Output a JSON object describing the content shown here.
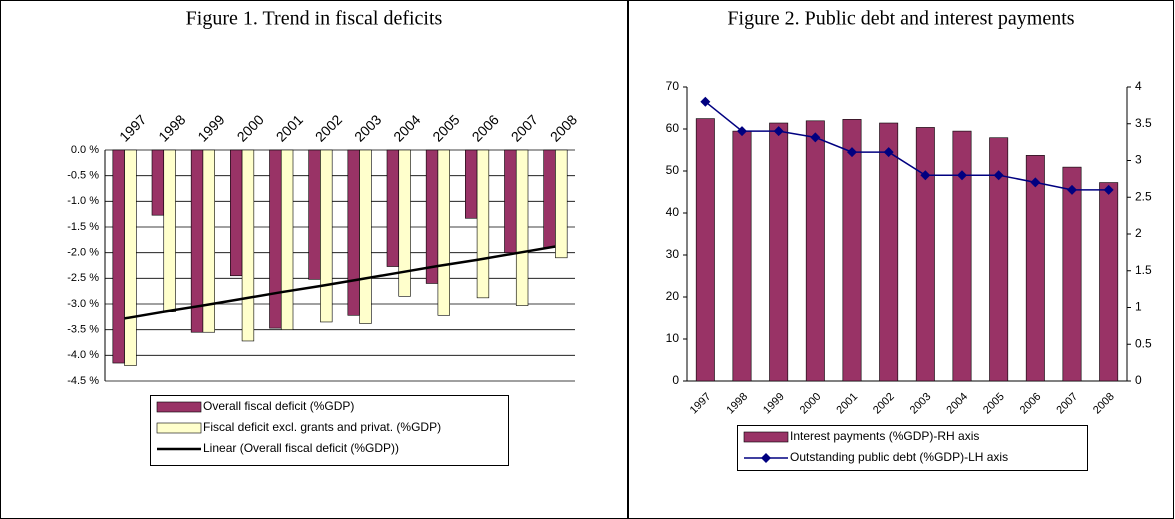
{
  "chart_data": [
    {
      "type": "bar",
      "title": "Figure 1. Trend in fiscal deficits",
      "categories": [
        "1997",
        "1998",
        "1999",
        "2000",
        "2001",
        "2002",
        "2003",
        "2004",
        "2005",
        "2006",
        "2007",
        "2008"
      ],
      "series": [
        {
          "name": "Overall fiscal deficit (%GDP)",
          "color": "#993366",
          "values": [
            -4.15,
            -1.27,
            -3.55,
            -2.45,
            -3.47,
            -2.52,
            -3.22,
            -2.27,
            -2.6,
            -1.33,
            -2.0,
            -1.9
          ]
        },
        {
          "name": "Fiscal deficit excl. grants and privat. (%GDP)",
          "color": "#FFFFCC",
          "values": [
            -4.2,
            -3.15,
            -3.55,
            -3.72,
            -3.5,
            -3.35,
            -3.38,
            -2.85,
            -3.22,
            -2.88,
            -3.03,
            -2.1
          ]
        }
      ],
      "trendline": {
        "name": "Linear (Overall fiscal deficit (%GDP))",
        "color": "#000000",
        "values": [
          -3.28,
          -3.15,
          -3.03,
          -2.9,
          -2.77,
          -2.65,
          -2.52,
          -2.39,
          -2.26,
          -2.14,
          -2.01,
          -1.88
        ]
      },
      "ylim": [
        -4.5,
        0
      ],
      "yticks": [
        {
          "value": 0,
          "label": "0.0 %"
        },
        {
          "value": -0.5,
          "label": "-0.5 %"
        },
        {
          "value": -1,
          "label": "-1.0 %"
        },
        {
          "value": -1.5,
          "label": "-1.5 %"
        },
        {
          "value": -2,
          "label": "-2.0 %"
        },
        {
          "value": -2.5,
          "label": "-2.5 %"
        },
        {
          "value": -3,
          "label": "-3.0 %"
        },
        {
          "value": -3.5,
          "label": "-3.5 %"
        },
        {
          "value": -4,
          "label": "-4.0 %"
        },
        {
          "value": -4.5,
          "label": "-4.5 %"
        }
      ],
      "grid": true
    },
    {
      "type": "combo",
      "title": "Figure 2. Public debt and interest payments",
      "categories": [
        "1997",
        "1998",
        "1999",
        "2000",
        "2001",
        "2002",
        "2003",
        "2004",
        "2005",
        "2006",
        "2007",
        "2008"
      ],
      "series": [
        {
          "name": "Interest payments (%GDP)-RH axis",
          "color": "#993366",
          "axis": "y2",
          "values": [
            3.57,
            3.4,
            3.51,
            3.54,
            3.56,
            3.51,
            3.45,
            3.4,
            3.31,
            3.07,
            2.91,
            2.7
          ]
        },
        {
          "name": "Outstanding public debt (%GDP)-LH axis",
          "color": "#000080",
          "values": [
            66.5,
            59.5,
            59.5,
            58,
            54.5,
            54.5,
            49,
            49,
            49,
            47.3,
            45.5,
            45.5
          ]
        }
      ],
      "ylim": [
        0,
        70
      ],
      "yticks": [
        0,
        10,
        20,
        30,
        40,
        50,
        60,
        70
      ],
      "y2lim": [
        0,
        4
      ],
      "y2ticks": [
        0,
        0.5,
        1,
        1.5,
        2,
        2.5,
        3,
        3.5,
        4
      ],
      "grid": false
    }
  ]
}
